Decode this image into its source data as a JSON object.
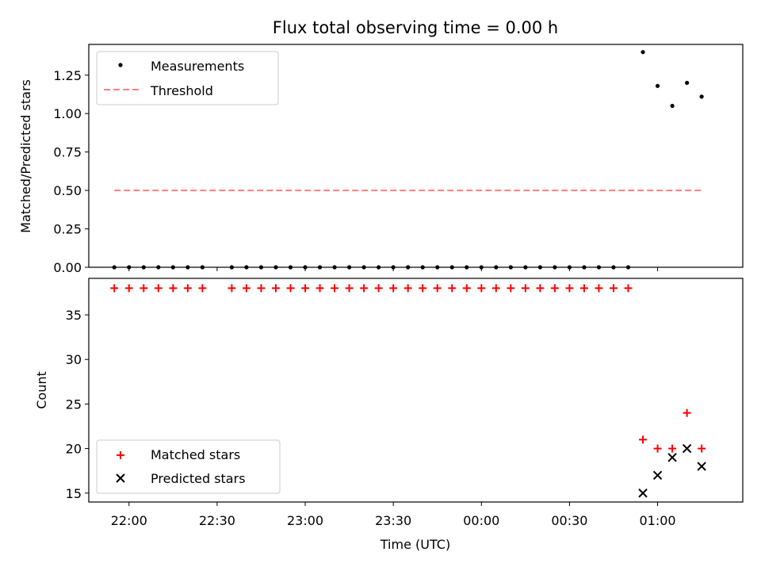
{
  "chart_data": [
    {
      "type": "scatter",
      "title": "Flux total observing time = 0.00 h",
      "xlabel": "",
      "ylabel": "Matched/Predicted stars",
      "ylim": [
        0,
        1.45
      ],
      "yticks": [
        0.0,
        0.25,
        0.5,
        0.75,
        1.0,
        1.25
      ],
      "ytick_labels": [
        "0.00",
        "0.25",
        "0.50",
        "0.75",
        "1.00",
        "1.25"
      ],
      "legend": "top-left",
      "series": [
        {
          "name": "Measurements",
          "kind": "scatter",
          "color": "#000000",
          "marker": "dot",
          "x": [
            "21:55",
            "22:00",
            "22:05",
            "22:10",
            "22:15",
            "22:20",
            "22:25",
            "22:35",
            "22:40",
            "22:45",
            "22:50",
            "22:55",
            "23:00",
            "23:05",
            "23:10",
            "23:15",
            "23:20",
            "23:25",
            "23:30",
            "23:35",
            "23:40",
            "23:45",
            "23:50",
            "23:55",
            "00:00",
            "00:05",
            "00:10",
            "00:15",
            "00:20",
            "00:25",
            "00:30",
            "00:35",
            "00:40",
            "00:45",
            "00:50",
            "00:55",
            "01:00",
            "01:05",
            "01:10",
            "01:15"
          ],
          "y": [
            0,
            0,
            0,
            0,
            0,
            0,
            0,
            0,
            0,
            0,
            0,
            0,
            0,
            0,
            0,
            0,
            0,
            0,
            0,
            0,
            0,
            0,
            0,
            0,
            0,
            0,
            0,
            0,
            0,
            0,
            0,
            0,
            0,
            0,
            0,
            1.4,
            1.18,
            1.05,
            1.2,
            1.11
          ]
        },
        {
          "name": "Threshold",
          "kind": "line",
          "color": "#ff7f7f",
          "style": "dashed",
          "x": [
            "21:55",
            "01:15"
          ],
          "y": [
            0.5,
            0.5
          ]
        }
      ]
    },
    {
      "type": "scatter",
      "title": "",
      "xlabel": "Time (UTC)",
      "ylabel": "Count",
      "ylim": [
        14.0,
        39.1
      ],
      "yticks": [
        15,
        20,
        25,
        30,
        35
      ],
      "ytick_labels": [
        "15",
        "20",
        "25",
        "30",
        "35"
      ],
      "xticks": [
        "22:00",
        "22:30",
        "23:00",
        "23:30",
        "00:00",
        "00:30",
        "01:00"
      ],
      "legend": "bottom-left",
      "series": [
        {
          "name": "Matched stars",
          "kind": "scatter",
          "color": "#ff0000",
          "marker": "plus",
          "x": [
            "21:55",
            "22:00",
            "22:05",
            "22:10",
            "22:15",
            "22:20",
            "22:25",
            "22:35",
            "22:40",
            "22:45",
            "22:50",
            "22:55",
            "23:00",
            "23:05",
            "23:10",
            "23:15",
            "23:20",
            "23:25",
            "23:30",
            "23:35",
            "23:40",
            "23:45",
            "23:50",
            "23:55",
            "00:00",
            "00:05",
            "00:10",
            "00:15",
            "00:20",
            "00:25",
            "00:30",
            "00:35",
            "00:40",
            "00:45",
            "00:50",
            "00:55",
            "01:00",
            "01:05",
            "01:10",
            "01:15"
          ],
          "y": [
            38,
            38,
            38,
            38,
            38,
            38,
            38,
            38,
            38,
            38,
            38,
            38,
            38,
            38,
            38,
            38,
            38,
            38,
            38,
            38,
            38,
            38,
            38,
            38,
            38,
            38,
            38,
            38,
            38,
            38,
            38,
            38,
            38,
            38,
            38,
            21,
            20,
            20,
            24,
            20
          ]
        },
        {
          "name": "Predicted stars",
          "kind": "scatter",
          "color": "#000000",
          "marker": "x",
          "x": [
            "00:55",
            "01:00",
            "01:05",
            "01:10",
            "01:15"
          ],
          "y": [
            15,
            17,
            19,
            20,
            18
          ]
        }
      ]
    }
  ]
}
